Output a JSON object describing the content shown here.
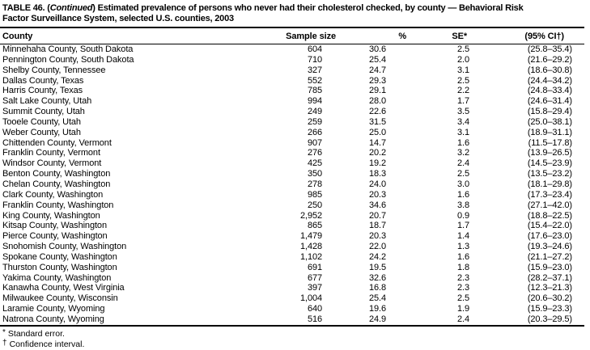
{
  "colors": {
    "text": "#000000",
    "background": "#ffffff",
    "rules": "#000000"
  },
  "table": {
    "title": {
      "part1": "TABLE 46. (",
      "part2_italic": "Continued",
      "part3": ") Estimated prevalence of persons who never had their cholesterol checked, by county — Behavioral Risk",
      "line2": "Factor Surveillance System, selected U.S. counties, 2003"
    },
    "columns": [
      "County",
      "Sample size",
      "%",
      "SE*",
      "(95% CI†)"
    ],
    "rows": [
      {
        "county": "Minnehaha County, South Dakota",
        "sample_size": "604",
        "pct": "30.6",
        "se": "2.5",
        "ci": "(25.8–35.4)"
      },
      {
        "county": "Pennington County, South Dakota",
        "sample_size": "710",
        "pct": "25.4",
        "se": "2.0",
        "ci": "(21.6–29.2)"
      },
      {
        "county": "Shelby County, Tennessee",
        "sample_size": "327",
        "pct": "24.7",
        "se": "3.1",
        "ci": "(18.6–30.8)"
      },
      {
        "county": "Dallas County, Texas",
        "sample_size": "552",
        "pct": "29.3",
        "se": "2.5",
        "ci": "(24.4–34.2)"
      },
      {
        "county": "Harris County, Texas",
        "sample_size": "785",
        "pct": "29.1",
        "se": "2.2",
        "ci": "(24.8–33.4)"
      },
      {
        "county": "Salt Lake County, Utah",
        "sample_size": "994",
        "pct": "28.0",
        "se": "1.7",
        "ci": "(24.6–31.4)"
      },
      {
        "county": "Summit County, Utah",
        "sample_size": "249",
        "pct": "22.6",
        "se": "3.5",
        "ci": "(15.8–29.4)"
      },
      {
        "county": "Tooele County, Utah",
        "sample_size": "259",
        "pct": "31.5",
        "se": "3.4",
        "ci": "(25.0–38.1)"
      },
      {
        "county": "Weber County, Utah",
        "sample_size": "266",
        "pct": "25.0",
        "se": "3.1",
        "ci": "(18.9–31.1)"
      },
      {
        "county": "Chittenden County, Vermont",
        "sample_size": "907",
        "pct": "14.7",
        "se": "1.6",
        "ci": "(11.5–17.8)"
      },
      {
        "county": "Franklin County, Vermont",
        "sample_size": "276",
        "pct": "20.2",
        "se": "3.2",
        "ci": "(13.9–26.5)"
      },
      {
        "county": "Windsor County, Vermont",
        "sample_size": "425",
        "pct": "19.2",
        "se": "2.4",
        "ci": "(14.5–23.9)"
      },
      {
        "county": "Benton County, Washington",
        "sample_size": "350",
        "pct": "18.3",
        "se": "2.5",
        "ci": "(13.5–23.2)"
      },
      {
        "county": "Chelan County, Washington",
        "sample_size": "278",
        "pct": "24.0",
        "se": "3.0",
        "ci": "(18.1–29.8)"
      },
      {
        "county": "Clark County, Washington",
        "sample_size": "985",
        "pct": "20.3",
        "se": "1.6",
        "ci": "(17.3–23.4)"
      },
      {
        "county": "Franklin County, Washington",
        "sample_size": "250",
        "pct": "34.6",
        "se": "3.8",
        "ci": "(27.1–42.0)"
      },
      {
        "county": "King County, Washington",
        "sample_size": "2,952",
        "pct": "20.7",
        "se": "0.9",
        "ci": "(18.8–22.5)"
      },
      {
        "county": "Kitsap County, Washington",
        "sample_size": "865",
        "pct": "18.7",
        "se": "1.7",
        "ci": "(15.4–22.0)"
      },
      {
        "county": "Pierce County, Washington",
        "sample_size": "1,479",
        "pct": "20.3",
        "se": "1.4",
        "ci": "(17.6–23.0)"
      },
      {
        "county": "Snohomish County, Washington",
        "sample_size": "1,428",
        "pct": "22.0",
        "se": "1.3",
        "ci": "(19.3–24.6)"
      },
      {
        "county": "Spokane County, Washington",
        "sample_size": "1,102",
        "pct": "24.2",
        "se": "1.6",
        "ci": "(21.1–27.2)"
      },
      {
        "county": "Thurston County, Washington",
        "sample_size": "691",
        "pct": "19.5",
        "se": "1.8",
        "ci": "(15.9–23.0)"
      },
      {
        "county": "Yakima County, Washington",
        "sample_size": "677",
        "pct": "32.6",
        "se": "2.3",
        "ci": "(28.2–37.1)"
      },
      {
        "county": "Kanawha County, West Virginia",
        "sample_size": "397",
        "pct": "16.8",
        "se": "2.3",
        "ci": "(12.3–21.3)"
      },
      {
        "county": "Milwaukee County, Wisconsin",
        "sample_size": "1,004",
        "pct": "25.4",
        "se": "2.5",
        "ci": "(20.6–30.2)"
      },
      {
        "county": "Laramie County, Wyoming",
        "sample_size": "640",
        "pct": "19.6",
        "se": "1.9",
        "ci": "(15.9–23.3)"
      },
      {
        "county": "Natrona County, Wyoming",
        "sample_size": "516",
        "pct": "24.9",
        "se": "2.4",
        "ci": "(20.3–29.5)"
      }
    ],
    "footnotes": [
      {
        "symbol": "*",
        "text": "Standard error."
      },
      {
        "symbol": "†",
        "text": "Confidence interval."
      }
    ]
  }
}
